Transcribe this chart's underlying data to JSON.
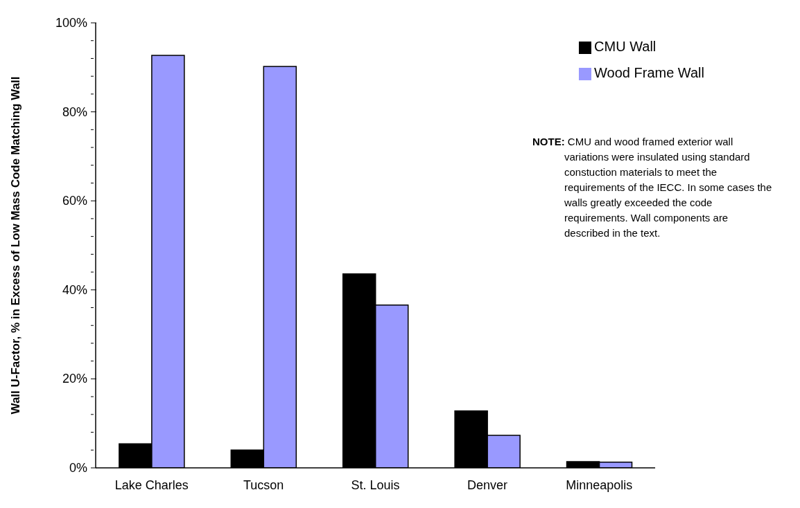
{
  "chart_data": {
    "type": "bar",
    "ylabel": "Wall U-Factor, % in Excess of Low Mass Code Matching Wall",
    "categories": [
      "Lake Charles",
      "Tucson",
      "St. Louis",
      "Denver",
      "Minneapolis"
    ],
    "series": [
      {
        "name": "CMU Wall",
        "color": "#000000",
        "values": [
          5.4,
          4.0,
          43.6,
          12.8,
          1.4
        ]
      },
      {
        "name": "Wood Frame Wall",
        "color": "#9999ff",
        "values": [
          92.7,
          90.2,
          36.6,
          7.3,
          1.3
        ]
      }
    ],
    "ylim": [
      0,
      100
    ],
    "yticks": [
      {
        "value": 0,
        "label": "0%"
      },
      {
        "value": 4,
        "label": null
      },
      {
        "value": 8,
        "label": null
      },
      {
        "value": 12,
        "label": null
      },
      {
        "value": 16,
        "label": null
      },
      {
        "value": 20,
        "label": "20%"
      },
      {
        "value": 24,
        "label": null
      },
      {
        "value": 28,
        "label": null
      },
      {
        "value": 32,
        "label": null
      },
      {
        "value": 36,
        "label": null
      },
      {
        "value": 40,
        "label": "40%"
      },
      {
        "value": 44,
        "label": null
      },
      {
        "value": 48,
        "label": null
      },
      {
        "value": 52,
        "label": null
      },
      {
        "value": 56,
        "label": null
      },
      {
        "value": 60,
        "label": "60%"
      },
      {
        "value": 64,
        "label": null
      },
      {
        "value": 68,
        "label": null
      },
      {
        "value": 72,
        "label": null
      },
      {
        "value": 76,
        "label": null
      },
      {
        "value": 80,
        "label": "80%"
      },
      {
        "value": 84,
        "label": null
      },
      {
        "value": 88,
        "label": null
      },
      {
        "value": 92,
        "label": null
      },
      {
        "value": 96,
        "label": null
      },
      {
        "value": 100,
        "label": "100%"
      }
    ],
    "grid": false,
    "legend": "top right",
    "annotations": [
      "NOTE:",
      "CMU and wood framed exterior wall variations were insulated using standard constuction materials to meet the requirements of the IECC.  In some cases the walls greatly exceeded the code requirements.  Wall components are described in the text."
    ]
  }
}
